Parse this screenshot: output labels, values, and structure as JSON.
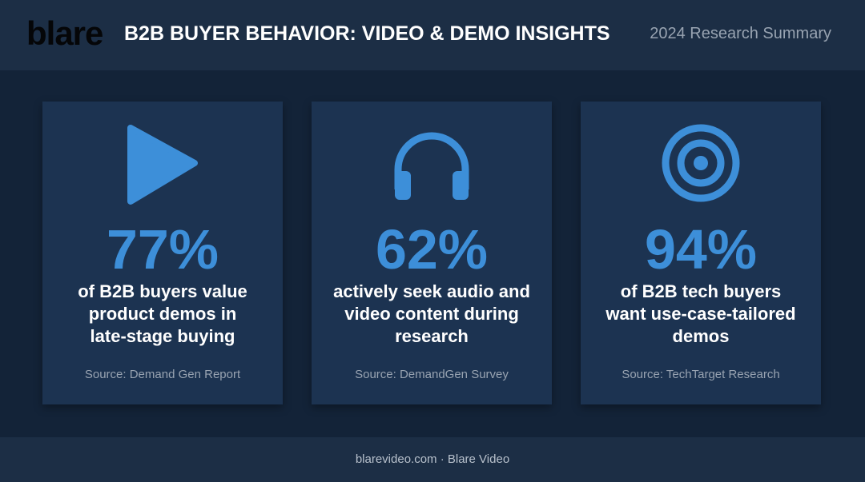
{
  "header": {
    "logo": "blare",
    "title": "B2B BUYER BEHAVIOR: VIDEO & DEMO INSIGHTS",
    "subtitle": "2024 Research Summary"
  },
  "cards": [
    {
      "stat": "77%",
      "text_lines": [
        "of B2B buyers value",
        "product demos in",
        "late-stage buying"
      ],
      "source": "Source: Demand Gen Report"
    },
    {
      "stat": "62%",
      "text_lines": [
        "actively seek audio and",
        "video content during",
        "research"
      ],
      "source": "Source: DemandGen Survey"
    },
    {
      "stat": "94%",
      "text_lines": [
        "of B2B tech buyers",
        "want use-case-tailored",
        "demos"
      ],
      "source": "Source: TechTarget Research"
    }
  ],
  "footer": "blarevideo.com · Blare Video"
}
